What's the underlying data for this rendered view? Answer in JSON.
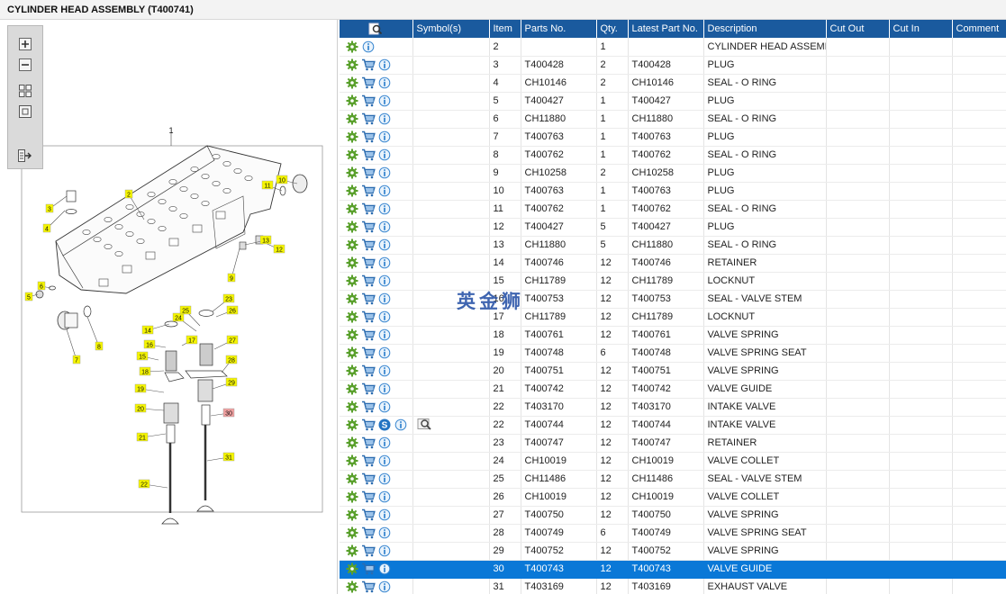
{
  "window": {
    "title": "CYLINDER HEAD ASSEMBLY (T400741)"
  },
  "toolbar": {
    "buttons": [
      "zoom-in",
      "zoom-out",
      "fit-all",
      "fit-window",
      "export"
    ]
  },
  "diagram": {
    "callouts": [
      "1",
      "2",
      "3",
      "4",
      "5",
      "6",
      "7",
      "8",
      "9",
      "10",
      "11",
      "12",
      "13",
      "14",
      "15",
      "16",
      "17",
      "18",
      "19",
      "20",
      "21",
      "22",
      "23",
      "24",
      "25",
      "26",
      "27",
      "28",
      "29",
      "30",
      "31"
    ],
    "highlighted_callout": "30"
  },
  "table": {
    "columns": [
      "",
      "Symbol(s)",
      "Item",
      "Parts No.",
      "Qty.",
      "Latest Part No.",
      "Description",
      "Cut Out",
      "Cut In",
      "Comment"
    ],
    "rows": [
      {
        "cart": false,
        "s": false,
        "lens": false,
        "item": "2",
        "part": "",
        "qty": "1",
        "latest": "",
        "desc": "CYLINDER HEAD ASSEMBLY"
      },
      {
        "cart": true,
        "s": false,
        "lens": false,
        "item": "3",
        "part": "T400428",
        "qty": "2",
        "latest": "T400428",
        "desc": "PLUG"
      },
      {
        "cart": true,
        "s": false,
        "lens": false,
        "item": "4",
        "part": "CH10146",
        "qty": "2",
        "latest": "CH10146",
        "desc": "SEAL - O RING"
      },
      {
        "cart": true,
        "s": false,
        "lens": false,
        "item": "5",
        "part": "T400427",
        "qty": "1",
        "latest": "T400427",
        "desc": "PLUG"
      },
      {
        "cart": true,
        "s": false,
        "lens": false,
        "item": "6",
        "part": "CH11880",
        "qty": "1",
        "latest": "CH11880",
        "desc": "SEAL - O RING"
      },
      {
        "cart": true,
        "s": false,
        "lens": false,
        "item": "7",
        "part": "T400763",
        "qty": "1",
        "latest": "T400763",
        "desc": "PLUG"
      },
      {
        "cart": true,
        "s": false,
        "lens": false,
        "item": "8",
        "part": "T400762",
        "qty": "1",
        "latest": "T400762",
        "desc": "SEAL - O RING"
      },
      {
        "cart": true,
        "s": false,
        "lens": false,
        "item": "9",
        "part": "CH10258",
        "qty": "2",
        "latest": "CH10258",
        "desc": "PLUG"
      },
      {
        "cart": true,
        "s": false,
        "lens": false,
        "item": "10",
        "part": "T400763",
        "qty": "1",
        "latest": "T400763",
        "desc": "PLUG"
      },
      {
        "cart": true,
        "s": false,
        "lens": false,
        "item": "11",
        "part": "T400762",
        "qty": "1",
        "latest": "T400762",
        "desc": "SEAL - O RING"
      },
      {
        "cart": true,
        "s": false,
        "lens": false,
        "item": "12",
        "part": "T400427",
        "qty": "5",
        "latest": "T400427",
        "desc": "PLUG"
      },
      {
        "cart": true,
        "s": false,
        "lens": false,
        "item": "13",
        "part": "CH11880",
        "qty": "5",
        "latest": "CH11880",
        "desc": "SEAL - O RING"
      },
      {
        "cart": true,
        "s": false,
        "lens": false,
        "item": "14",
        "part": "T400746",
        "qty": "12",
        "latest": "T400746",
        "desc": "RETAINER"
      },
      {
        "cart": true,
        "s": false,
        "lens": false,
        "item": "15",
        "part": "CH11789",
        "qty": "12",
        "latest": "CH11789",
        "desc": "LOCKNUT"
      },
      {
        "cart": true,
        "s": false,
        "lens": false,
        "item": "16",
        "part": "T400753",
        "qty": "12",
        "latest": "T400753",
        "desc": "SEAL - VALVE STEM"
      },
      {
        "cart": true,
        "s": false,
        "lens": false,
        "item": "17",
        "part": "CH11789",
        "qty": "12",
        "latest": "CH11789",
        "desc": "LOCKNUT"
      },
      {
        "cart": true,
        "s": false,
        "lens": false,
        "item": "18",
        "part": "T400761",
        "qty": "12",
        "latest": "T400761",
        "desc": "VALVE SPRING"
      },
      {
        "cart": true,
        "s": false,
        "lens": false,
        "item": "19",
        "part": "T400748",
        "qty": "6",
        "latest": "T400748",
        "desc": "VALVE SPRING SEAT"
      },
      {
        "cart": true,
        "s": false,
        "lens": false,
        "item": "20",
        "part": "T400751",
        "qty": "12",
        "latest": "T400751",
        "desc": "VALVE SPRING"
      },
      {
        "cart": true,
        "s": false,
        "lens": false,
        "item": "21",
        "part": "T400742",
        "qty": "12",
        "latest": "T400742",
        "desc": "VALVE GUIDE"
      },
      {
        "cart": true,
        "s": false,
        "lens": false,
        "item": "22",
        "part": "T403170",
        "qty": "12",
        "latest": "T403170",
        "desc": "INTAKE VALVE"
      },
      {
        "cart": true,
        "s": true,
        "lens": true,
        "item": "22",
        "part": "T400744",
        "qty": "12",
        "latest": "T400744",
        "desc": "INTAKE VALVE"
      },
      {
        "cart": true,
        "s": false,
        "lens": false,
        "item": "23",
        "part": "T400747",
        "qty": "12",
        "latest": "T400747",
        "desc": "RETAINER"
      },
      {
        "cart": true,
        "s": false,
        "lens": false,
        "item": "24",
        "part": "CH10019",
        "qty": "12",
        "latest": "CH10019",
        "desc": "VALVE COLLET"
      },
      {
        "cart": true,
        "s": false,
        "lens": false,
        "item": "25",
        "part": "CH11486",
        "qty": "12",
        "latest": "CH11486",
        "desc": "SEAL - VALVE STEM"
      },
      {
        "cart": true,
        "s": false,
        "lens": false,
        "item": "26",
        "part": "CH10019",
        "qty": "12",
        "latest": "CH10019",
        "desc": "VALVE COLLET"
      },
      {
        "cart": true,
        "s": false,
        "lens": false,
        "item": "27",
        "part": "T400750",
        "qty": "12",
        "latest": "T400750",
        "desc": "VALVE SPRING"
      },
      {
        "cart": true,
        "s": false,
        "lens": false,
        "item": "28",
        "part": "T400749",
        "qty": "6",
        "latest": "T400749",
        "desc": "VALVE SPRING SEAT"
      },
      {
        "cart": true,
        "s": false,
        "lens": false,
        "item": "29",
        "part": "T400752",
        "qty": "12",
        "latest": "T400752",
        "desc": "VALVE SPRING"
      },
      {
        "cart": true,
        "s": false,
        "lens": false,
        "item": "30",
        "part": "T400743",
        "qty": "12",
        "latest": "T400743",
        "desc": "VALVE GUIDE",
        "selected": true
      },
      {
        "cart": true,
        "s": false,
        "lens": false,
        "item": "31",
        "part": "T403169",
        "qty": "12",
        "latest": "T403169",
        "desc": "EXHAUST VALVE"
      }
    ]
  },
  "watermark": "英金狮",
  "colors": {
    "header_bg": "#1a5a9e",
    "selected_row": "#0a78d7",
    "callout_yellow": "#f5f500",
    "callout_highlight": "#f0a0a0",
    "gear": "#5aa02c",
    "cart": "#2b6cb0",
    "info": "#3a87d0"
  }
}
